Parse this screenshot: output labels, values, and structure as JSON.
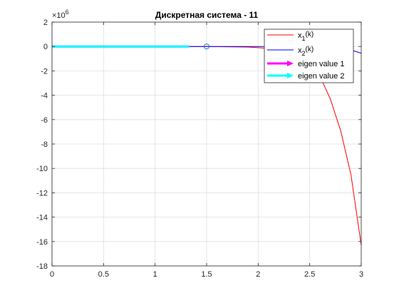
{
  "chart_data": {
    "type": "line",
    "title": "Дискретная система - 11",
    "xlabel": "",
    "ylabel": "",
    "xlim": [
      0,
      3
    ],
    "ylim": [
      -18,
      2
    ],
    "y_exponent_label": "×10",
    "y_exponent_power": "6",
    "y_scale_factor": 1000000,
    "grid": true,
    "legend_position": "top-right",
    "x_ticks": [
      0,
      0.5,
      1,
      1.5,
      2,
      2.5,
      3
    ],
    "x_tick_labels": [
      "0",
      "0.5",
      "1",
      "1.5",
      "2",
      "2.5",
      "3"
    ],
    "y_ticks": [
      2,
      0,
      -2,
      -4,
      -6,
      -8,
      -10,
      -12,
      -14,
      -16,
      -18
    ],
    "y_tick_labels": [
      "2",
      "0",
      "-2",
      "-4",
      "-6",
      "-8",
      "-10",
      "-12",
      "-14",
      "-16",
      "-18"
    ],
    "series": [
      {
        "legend_main": "x",
        "legend_sub": "1",
        "legend_suffix": "(k)",
        "color": "#ff0000",
        "kind": "line",
        "x": [
          0,
          1.5,
          1.9,
          2.0,
          2.1,
          2.2,
          2.3,
          2.4,
          2.5,
          2.6,
          2.7,
          2.8,
          2.9,
          3.0
        ],
        "y": [
          0,
          0,
          -0.05,
          -0.1,
          -0.16,
          -0.27,
          -0.47,
          -0.81,
          -1.4,
          -2.45,
          -4.3,
          -6.9,
          -10.5,
          -16.3
        ]
      },
      {
        "legend_main": "x",
        "legend_sub": "2",
        "legend_suffix": "(k)",
        "color": "#0000ff",
        "kind": "line",
        "x": [
          0,
          1.5,
          2.0,
          2.5,
          2.6,
          2.7,
          2.8,
          2.9,
          3.0
        ],
        "y": [
          0,
          0,
          -0.005,
          -0.02,
          -0.04,
          -0.08,
          -0.15,
          -0.29,
          -0.55
        ]
      },
      {
        "legend_main": "eigen value 1",
        "color": "#ff00ff",
        "kind": "arrow",
        "x": [
          0,
          1.33
        ],
        "y": [
          0,
          0
        ]
      },
      {
        "legend_main": "eigen value 2",
        "color": "#00ffff",
        "kind": "arrow",
        "x": [
          0,
          1.33
        ],
        "y": [
          0,
          0
        ]
      }
    ],
    "markers": [
      {
        "x": 1.5,
        "y": 0,
        "shape": "circle",
        "color": "#0072bd"
      }
    ]
  }
}
